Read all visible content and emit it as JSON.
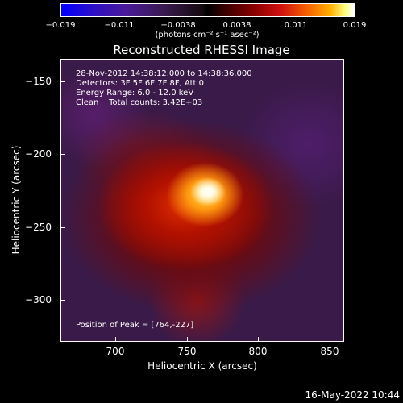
{
  "colorbar": {
    "ticks": [
      "−0.019",
      "−0.011",
      "−0.0038",
      "0.0038",
      "0.011",
      "0.019"
    ],
    "unit": "(photons cm⁻² s⁻¹ asec⁻²)"
  },
  "title": "Reconstructed RHESSI Image",
  "annotations": {
    "time_range": "28-Nov-2012 14:38:12.000 to 14:38:36.000",
    "detectors": "Detectors: 3F 5F 6F 7F 8F, Att 0",
    "energy": "Energy Range: 6.0 - 12.0 keV",
    "method": "Clean    Total counts: 3.42E+03",
    "peak": "Position of Peak = [764,-227]"
  },
  "axes": {
    "xlabel": "Heliocentric X (arcsec)",
    "ylabel": "Heliocentric Y (arcsec)",
    "xticks": [
      "700",
      "750",
      "800",
      "850"
    ],
    "yticks": [
      "−150",
      "−200",
      "−250",
      "−300"
    ]
  },
  "footer": {
    "date": "16-May-2022 10:44"
  }
}
